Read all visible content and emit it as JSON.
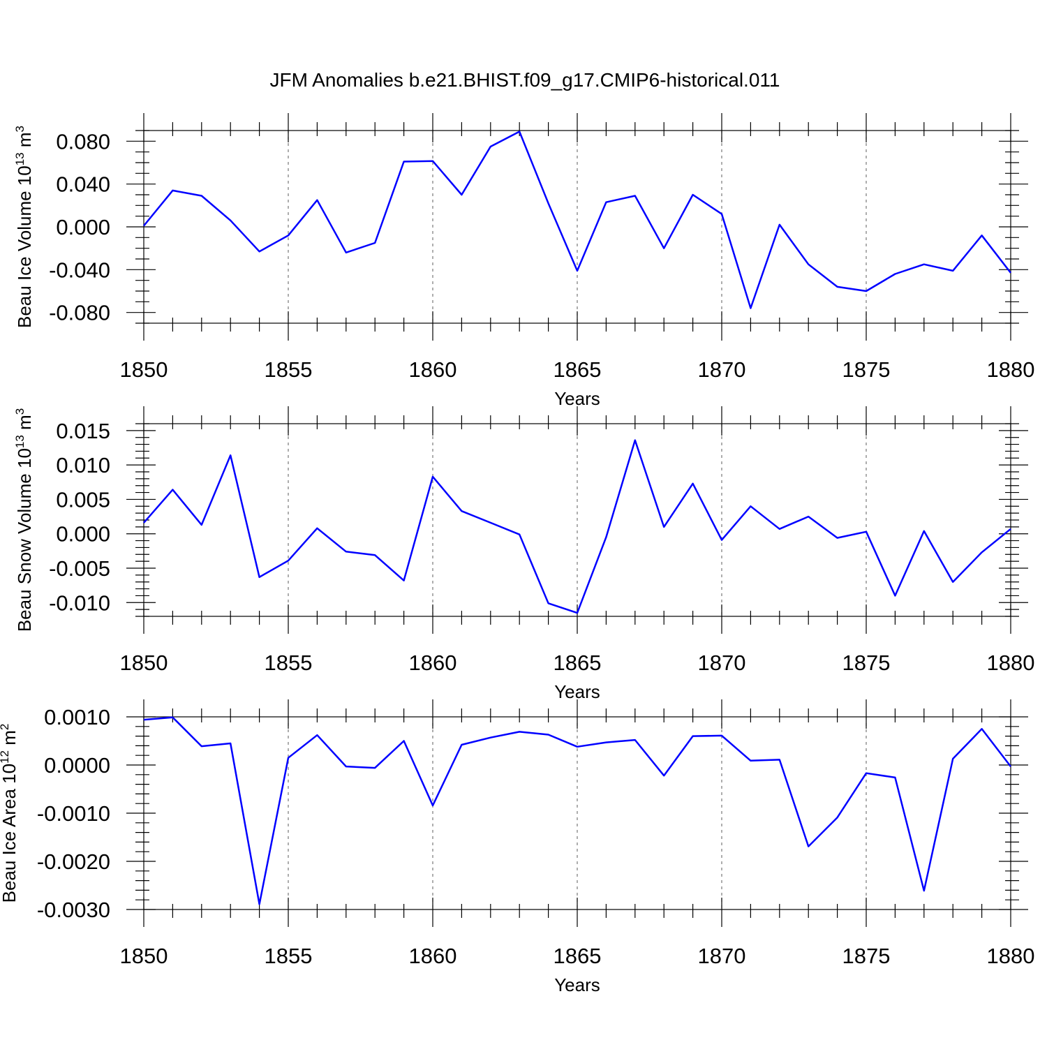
{
  "title": "JFM Anomalies b.e21.BHIST.f09_g17.CMIP6-historical.011",
  "colors": {
    "series": "#0000ff",
    "grid": "#777777",
    "axis": "#000000"
  },
  "chart_data": [
    {
      "type": "line",
      "xlabel": "Years",
      "ylabel": {
        "text": "Beau Ice Volume 10",
        "exp": "13",
        "unit": " m",
        "unit_exp": "3"
      },
      "xlim": [
        1850,
        1880
      ],
      "ylim": [
        -0.09,
        0.09
      ],
      "xticks": [
        "1850",
        "1855",
        "1860",
        "1865",
        "1870",
        "1875",
        "1880"
      ],
      "yticks": [
        {
          "value": 0.08,
          "label": "0.080"
        },
        {
          "value": 0.04,
          "label": "0.040"
        },
        {
          "value": 0.0,
          "label": "0.000"
        },
        {
          "value": -0.04,
          "label": "-0.040"
        },
        {
          "value": -0.08,
          "label": "-0.080"
        }
      ],
      "yminor_step": 0.01,
      "grid_x": true,
      "x": [
        1850,
        1851,
        1852,
        1853,
        1854,
        1855,
        1856,
        1857,
        1858,
        1859,
        1860,
        1861,
        1862,
        1863,
        1864,
        1865,
        1866,
        1867,
        1868,
        1869,
        1870,
        1871,
        1872,
        1873,
        1874,
        1875,
        1876,
        1877,
        1878,
        1879,
        1880
      ],
      "series": [
        {
          "name": "Beau Ice Volume",
          "values": [
            0.001,
            0.034,
            0.029,
            0.006,
            -0.023,
            -0.008,
            0.025,
            -0.024,
            -0.015,
            0.061,
            0.0615,
            0.03,
            0.075,
            0.089,
            0.022,
            -0.041,
            0.023,
            0.029,
            -0.02,
            0.03,
            0.012,
            -0.076,
            0.002,
            -0.035,
            -0.056,
            -0.06,
            -0.044,
            -0.035,
            -0.041,
            -0.008,
            -0.043
          ]
        }
      ]
    },
    {
      "type": "line",
      "xlabel": "Years",
      "ylabel": {
        "text": "Beau Snow Volume 10",
        "exp": "13",
        "unit": " m",
        "unit_exp": "3"
      },
      "xlim": [
        1850,
        1880
      ],
      "ylim": [
        -0.012,
        0.016
      ],
      "xticks": [
        "1850",
        "1855",
        "1860",
        "1865",
        "1870",
        "1875",
        "1880"
      ],
      "yticks": [
        {
          "value": 0.015,
          "label": "0.015"
        },
        {
          "value": 0.01,
          "label": "0.010"
        },
        {
          "value": 0.005,
          "label": "0.005"
        },
        {
          "value": 0.0,
          "label": "0.000"
        },
        {
          "value": -0.005,
          "label": "-0.005"
        },
        {
          "value": -0.01,
          "label": "-0.010"
        }
      ],
      "yminor_step": 0.001,
      "grid_x": true,
      "x": [
        1850,
        1851,
        1852,
        1853,
        1854,
        1855,
        1856,
        1857,
        1858,
        1859,
        1860,
        1861,
        1862,
        1863,
        1864,
        1865,
        1866,
        1867,
        1868,
        1869,
        1870,
        1871,
        1872,
        1873,
        1874,
        1875,
        1876,
        1877,
        1878,
        1879,
        1880
      ],
      "series": [
        {
          "name": "Beau Snow Volume",
          "values": [
            0.0016,
            0.0064,
            0.0013,
            0.0114,
            -0.0063,
            -0.0039,
            0.0008,
            -0.0026,
            -0.0031,
            -0.0068,
            0.0083,
            0.0033,
            0.0016,
            -0.0001,
            -0.0101,
            -0.0115,
            -0.0005,
            0.0136,
            0.001,
            0.0073,
            -0.0009,
            0.004,
            0.0007,
            0.0025,
            -0.0006,
            0.0003,
            -0.009,
            0.0004,
            -0.007,
            -0.0027,
            0.0007
          ]
        }
      ]
    },
    {
      "type": "line",
      "xlabel": "Years",
      "ylabel": {
        "text": "Beau Ice Area 10",
        "exp": "12",
        "unit": " m",
        "unit_exp": "2"
      },
      "xlim": [
        1850,
        1880
      ],
      "ylim": [
        -0.003,
        0.001
      ],
      "xticks": [
        "1850",
        "1855",
        "1860",
        "1865",
        "1870",
        "1875",
        "1880"
      ],
      "yticks": [
        {
          "value": 0.001,
          "label": "0.0010"
        },
        {
          "value": 0.0,
          "label": "0.0000"
        },
        {
          "value": -0.001,
          "label": "-0.0010"
        },
        {
          "value": -0.002,
          "label": "-0.0020"
        },
        {
          "value": -0.003,
          "label": "-0.0030"
        }
      ],
      "yminor_step": 0.0002,
      "grid_x": true,
      "x": [
        1850,
        1851,
        1852,
        1853,
        1854,
        1855,
        1856,
        1857,
        1858,
        1859,
        1860,
        1861,
        1862,
        1863,
        1864,
        1865,
        1866,
        1867,
        1868,
        1869,
        1870,
        1871,
        1872,
        1873,
        1874,
        1875,
        1876,
        1877,
        1878,
        1879,
        1880
      ],
      "series": [
        {
          "name": "Beau Ice Area",
          "values": [
            0.00094,
            0.00099,
            0.00039,
            0.00045,
            -0.00289,
            0.00015,
            0.00062,
            -3e-05,
            -6e-05,
            0.0005,
            -0.00084,
            0.00042,
            0.00057,
            0.00069,
            0.00063,
            0.00038,
            0.00047,
            0.00052,
            -0.00022,
            0.0006,
            0.00061,
            9e-05,
            0.00011,
            -0.00169,
            -0.00109,
            -0.00017,
            -0.00026,
            -0.00261,
            0.00013,
            0.00075,
            -3e-05
          ]
        }
      ]
    }
  ]
}
